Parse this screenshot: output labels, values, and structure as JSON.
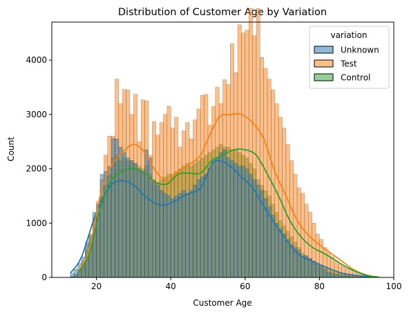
{
  "chart_data": {
    "type": "histogram",
    "title": "Distribution of Customer Age by Variation",
    "xlabel": "Customer Age",
    "ylabel": "Count",
    "xlim": [
      8,
      100
    ],
    "ylim": [
      0,
      4700
    ],
    "xticks": [
      20,
      40,
      60,
      80,
      100
    ],
    "yticks": [
      0,
      1000,
      2000,
      3000,
      4000
    ],
    "grid": false,
    "legend": {
      "title": "variation",
      "position": "top-right"
    },
    "bins": {
      "start": 13,
      "width": 1,
      "count": 83
    },
    "series": [
      {
        "name": "Unknown",
        "color": "#1f77b4",
        "counts": [
          80,
          150,
          260,
          380,
          650,
          780,
          1200,
          1350,
          1900,
          1950,
          2050,
          2560,
          2550,
          2400,
          2300,
          2200,
          2150,
          2100,
          2000,
          1950,
          2350,
          2200,
          1750,
          1700,
          1600,
          1550,
          1500,
          1450,
          1500,
          1550,
          1600,
          1550,
          1600,
          1700,
          1800,
          1850,
          1900,
          2000,
          2150,
          2200,
          2300,
          2350,
          2200,
          2150,
          2100,
          2050,
          2050,
          2000,
          1900,
          1800,
          1700,
          1600,
          1450,
          1300,
          1150,
          1000,
          900,
          800,
          700,
          600,
          550,
          500,
          400,
          400,
          350,
          300,
          250,
          200,
          150,
          100,
          80,
          60,
          50,
          40,
          30,
          20,
          15,
          10,
          8,
          6,
          5,
          3,
          2
        ],
        "kde": [
          [
            13,
            80
          ],
          [
            16,
            380
          ],
          [
            20,
            1200
          ],
          [
            24,
            1700
          ],
          [
            27,
            1780
          ],
          [
            30,
            1700
          ],
          [
            33,
            1500
          ],
          [
            36,
            1360
          ],
          [
            38,
            1330
          ],
          [
            41,
            1400
          ],
          [
            44,
            1520
          ],
          [
            48,
            1650
          ],
          [
            51,
            2080
          ],
          [
            53,
            2150
          ],
          [
            56,
            2050
          ],
          [
            59,
            1850
          ],
          [
            62,
            1650
          ],
          [
            66,
            1200
          ],
          [
            70,
            800
          ],
          [
            74,
            450
          ],
          [
            78,
            300
          ],
          [
            82,
            180
          ],
          [
            86,
            80
          ],
          [
            90,
            35
          ],
          [
            94,
            10
          ],
          [
            96,
            5
          ]
        ]
      },
      {
        "name": "Test",
        "color": "#ff7f0e",
        "counts": [
          20,
          60,
          150,
          300,
          600,
          800,
          1100,
          1400,
          1800,
          2250,
          2600,
          2600,
          3650,
          3200,
          3460,
          3450,
          3000,
          3370,
          2500,
          3270,
          3250,
          2250,
          2870,
          2620,
          2850,
          3000,
          3150,
          2750,
          2950,
          2400,
          2700,
          2850,
          2550,
          2900,
          3100,
          3350,
          3370,
          2800,
          3150,
          3500,
          3200,
          3640,
          3550,
          4300,
          3770,
          4650,
          4500,
          4550,
          4950,
          4450,
          4950,
          4050,
          3850,
          3650,
          3450,
          3200,
          2950,
          2750,
          2450,
          2150,
          1900,
          1650,
          1550,
          1350,
          1200,
          1000,
          800,
          700,
          550,
          450,
          380,
          300,
          250,
          200,
          160,
          120,
          90,
          60,
          40,
          30,
          20,
          10,
          5
        ],
        "kde": [
          [
            15,
            100
          ],
          [
            18,
            500
          ],
          [
            21,
            1500
          ],
          [
            24,
            2050
          ],
          [
            27,
            2300
          ],
          [
            30,
            2450
          ],
          [
            33,
            2300
          ],
          [
            36,
            1950
          ],
          [
            39,
            1780
          ],
          [
            42,
            1950
          ],
          [
            45,
            2080
          ],
          [
            48,
            2250
          ],
          [
            50,
            2550
          ],
          [
            53,
            2950
          ],
          [
            56,
            3000
          ],
          [
            59,
            3000
          ],
          [
            62,
            2850
          ],
          [
            65,
            2550
          ],
          [
            68,
            1950
          ],
          [
            71,
            1500
          ],
          [
            74,
            1050
          ],
          [
            77,
            780
          ],
          [
            80,
            600
          ],
          [
            83,
            450
          ],
          [
            86,
            300
          ],
          [
            89,
            150
          ],
          [
            92,
            60
          ],
          [
            95,
            10
          ]
        ]
      },
      {
        "name": "Control",
        "color": "#2ca02c",
        "counts": [
          15,
          50,
          120,
          250,
          500,
          700,
          900,
          1200,
          1500,
          1700,
          1900,
          2200,
          2250,
          2150,
          2200,
          2150,
          2150,
          2100,
          2050,
          2000,
          2050,
          1900,
          1800,
          1750,
          1800,
          1850,
          1900,
          1900,
          1950,
          2000,
          2050,
          2100,
          2050,
          2100,
          2150,
          2200,
          2250,
          2300,
          2350,
          2400,
          2450,
          2400,
          2400,
          2350,
          2350,
          2300,
          2250,
          2200,
          2100,
          2000,
          1800,
          1700,
          1600,
          1500,
          1350,
          1200,
          1050,
          950,
          850,
          750,
          650,
          550,
          450,
          400,
          350,
          300,
          270,
          230,
          200,
          160,
          120,
          100,
          90,
          80,
          60,
          40,
          30,
          20,
          15,
          10,
          6,
          4,
          2
        ],
        "kde": [
          [
            15,
            80
          ],
          [
            18,
            420
          ],
          [
            21,
            1250
          ],
          [
            24,
            1780
          ],
          [
            27,
            1960
          ],
          [
            30,
            2000
          ],
          [
            33,
            1920
          ],
          [
            36,
            1750
          ],
          [
            39,
            1720
          ],
          [
            42,
            1900
          ],
          [
            45,
            1920
          ],
          [
            48,
            1920
          ],
          [
            51,
            2150
          ],
          [
            54,
            2250
          ],
          [
            57,
            2350
          ],
          [
            60,
            2350
          ],
          [
            63,
            2250
          ],
          [
            66,
            1900
          ],
          [
            69,
            1500
          ],
          [
            72,
            1050
          ],
          [
            75,
            750
          ],
          [
            78,
            560
          ],
          [
            81,
            450
          ],
          [
            84,
            330
          ],
          [
            87,
            200
          ],
          [
            90,
            100
          ],
          [
            93,
            30
          ],
          [
            96,
            8
          ]
        ]
      }
    ]
  }
}
